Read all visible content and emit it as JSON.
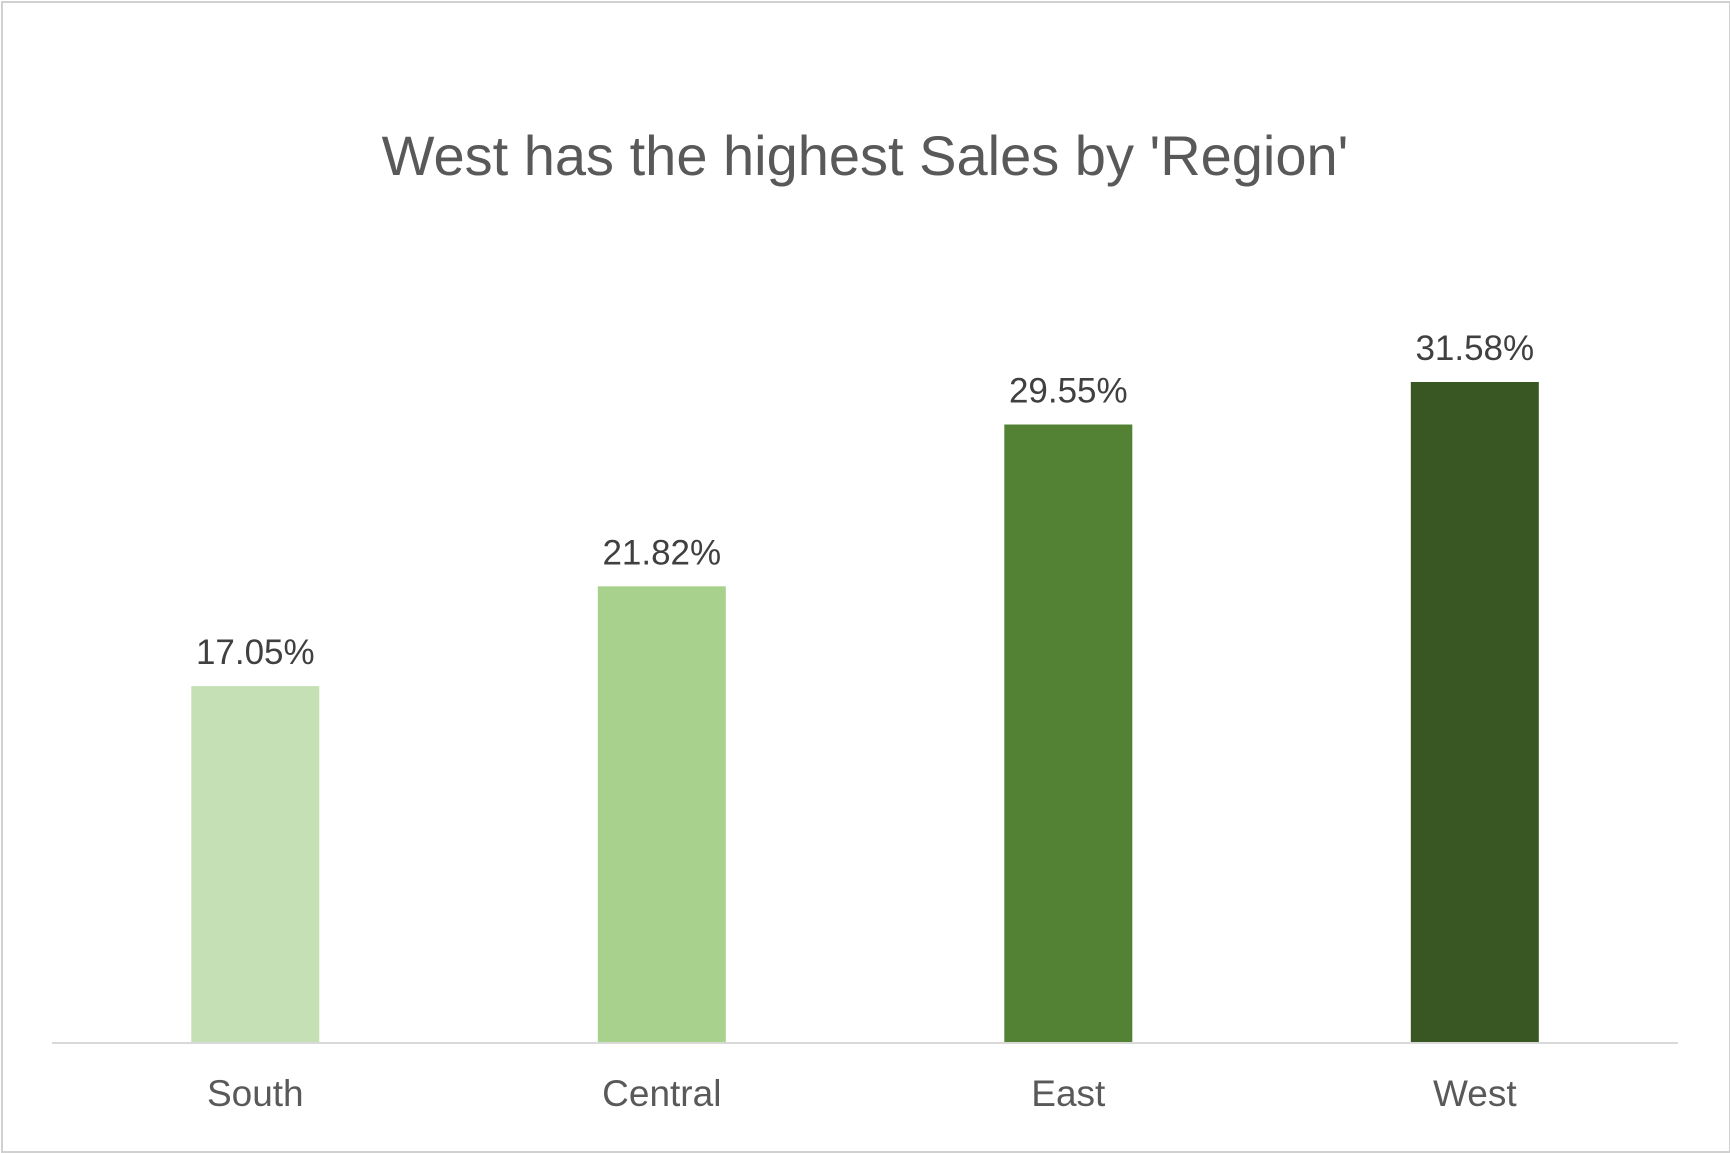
{
  "chart_data": {
    "type": "bar",
    "title": "West has the highest Sales by 'Region'",
    "xlabel": "",
    "ylabel": "",
    "categories": [
      "South",
      "Central",
      "East",
      "West"
    ],
    "values": [
      17.05,
      21.82,
      29.55,
      31.58
    ],
    "data_labels": [
      "17.05%",
      "21.82%",
      "29.55%",
      "31.58%"
    ],
    "value_unit": "%",
    "ylim": [
      0,
      34.4
    ],
    "grid": false,
    "legend": "none",
    "colors": [
      "#c5e0b4",
      "#a9d18e",
      "#548235",
      "#385723"
    ],
    "axis_color": "#d9d9d9"
  }
}
